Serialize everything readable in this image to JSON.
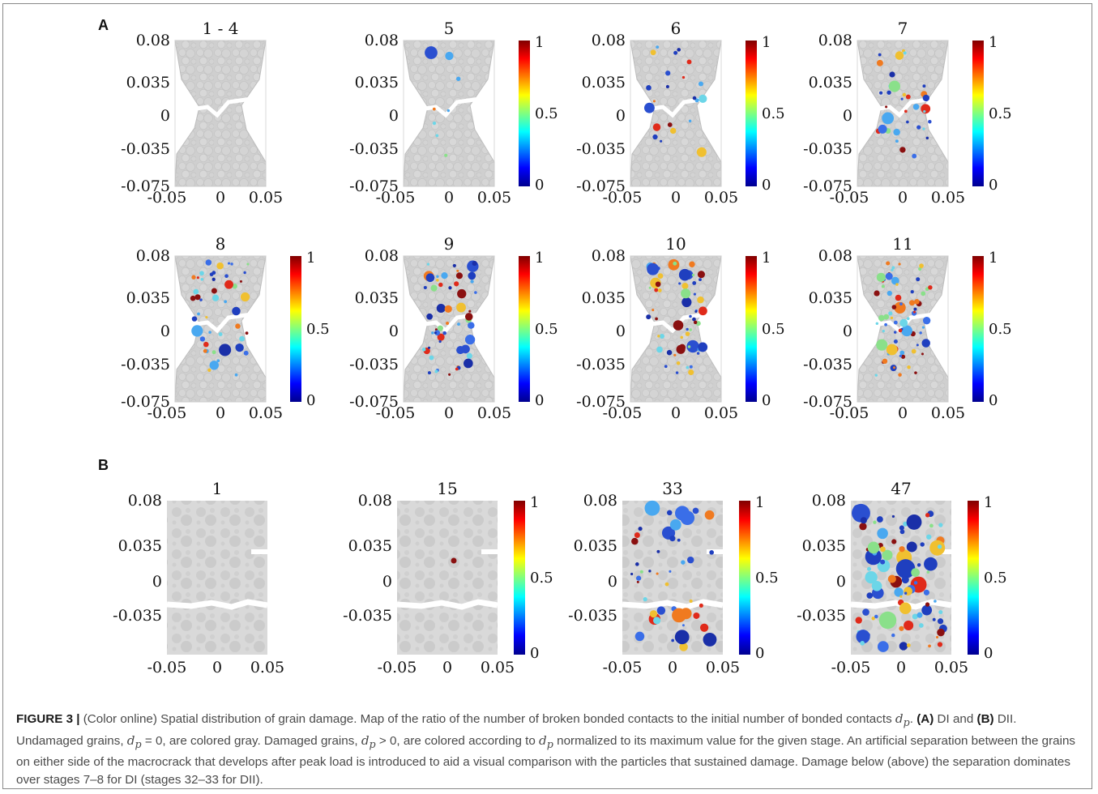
{
  "figure": {
    "panel_A": {
      "letter": "A",
      "axes": {
        "y_ticks": [
          "0.08",
          "0.035",
          "0",
          "-0.035",
          "-0.075"
        ],
        "x_ticks": [
          "-0.05",
          "0",
          "0.05"
        ]
      },
      "subplots": [
        {
          "title": "1 - 4",
          "colorbar": false
        },
        {
          "title": "5",
          "colorbar": true
        },
        {
          "title": "6",
          "colorbar": true
        },
        {
          "title": "7",
          "colorbar": true
        },
        {
          "title": "8",
          "colorbar": true
        },
        {
          "title": "9",
          "colorbar": true
        },
        {
          "title": "10",
          "colorbar": true
        },
        {
          "title": "11",
          "colorbar": true
        }
      ]
    },
    "panel_B": {
      "letter": "B",
      "axes": {
        "y_ticks": [
          "0.08",
          "0.035",
          "0",
          "-0.035"
        ],
        "x_ticks": [
          "-0.05",
          "0",
          "0.05"
        ]
      },
      "subplots": [
        {
          "title": "1",
          "colorbar": false
        },
        {
          "title": "15",
          "colorbar": true
        },
        {
          "title": "33",
          "colorbar": true
        },
        {
          "title": "47",
          "colorbar": true
        }
      ]
    },
    "colorbar_ticks": [
      "1",
      "0.5",
      "0"
    ],
    "colors": {
      "grain_gray": "#cfcfcf",
      "background_gray": "#d9d9d9",
      "jet_dark_blue": "#00008f",
      "jet_blue": "#0050ff",
      "jet_cyan": "#00e0ff",
      "jet_green": "#80ff80",
      "jet_yellow": "#ffe000",
      "jet_red": "#ff2000",
      "jet_dark_red": "#800000"
    }
  },
  "caption": {
    "label": "FIGURE 3 |",
    "sentence1": "(Color online) Spatial distribution of grain damage. Map of the ratio of the number of broken bonded contacts to the initial number of bonded contacts",
    "dp_symbol": "d",
    "dp_sub": "p",
    "panel_a_bold": "(A)",
    "panel_a_text": "DI and",
    "panel_b_bold": "(B)",
    "panel_b_text": "DII. Undamaged grains,",
    "eq_zero": "= 0, are colored gray. Damaged grains,",
    "gt_zero": "> 0, are colored according to",
    "sentence3": "normalized to its maximum value for the given stage. An artificial separation between the grains on either side of the macrocrack that develops after peak load is introduced to aid a visual comparison with the particles that sustained damage. Damage below (above) the separation dominates over stages 7–8 for DI (stages 32–33 for DII)."
  }
}
